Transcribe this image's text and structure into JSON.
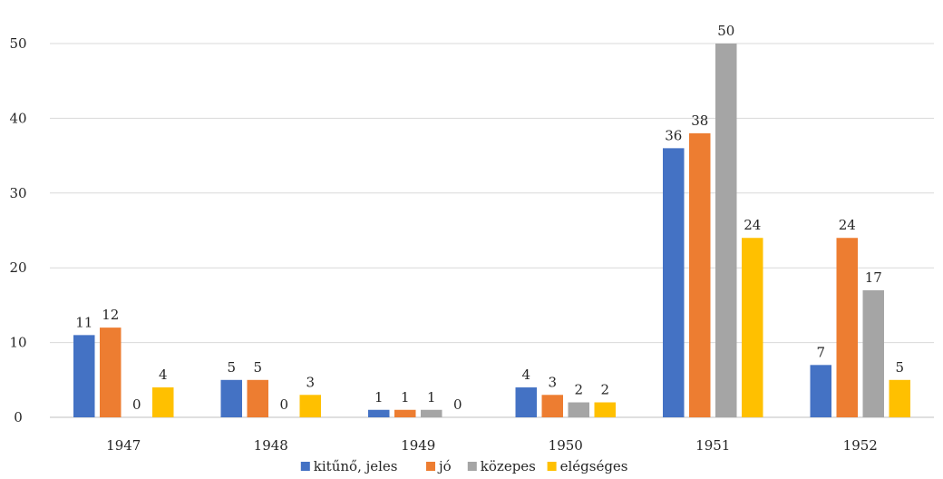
{
  "chart_data": {
    "type": "bar",
    "title": "",
    "xlabel": "",
    "ylabel": "",
    "categories": [
      "1947",
      "1948",
      "1949",
      "1950",
      "1951",
      "1952"
    ],
    "series": [
      {
        "name": "kitűnő, jeles",
        "color": "#4472C4",
        "values": [
          11,
          5,
          1,
          4,
          36,
          7
        ]
      },
      {
        "name": "jó",
        "color": "#ED7D31",
        "values": [
          12,
          5,
          1,
          3,
          38,
          24
        ]
      },
      {
        "name": "közepes",
        "color": "#A5A5A5",
        "values": [
          0,
          0,
          1,
          2,
          50,
          17
        ]
      },
      {
        "name": "elégséges",
        "color": "#FFC000",
        "values": [
          4,
          3,
          0,
          2,
          24,
          5
        ]
      }
    ],
    "ylim": [
      0,
      50
    ],
    "yticks": [
      "0",
      "10",
      "20",
      "30",
      "40",
      "50"
    ],
    "grid": true,
    "data_labels": true,
    "legend_position": "bottom"
  }
}
